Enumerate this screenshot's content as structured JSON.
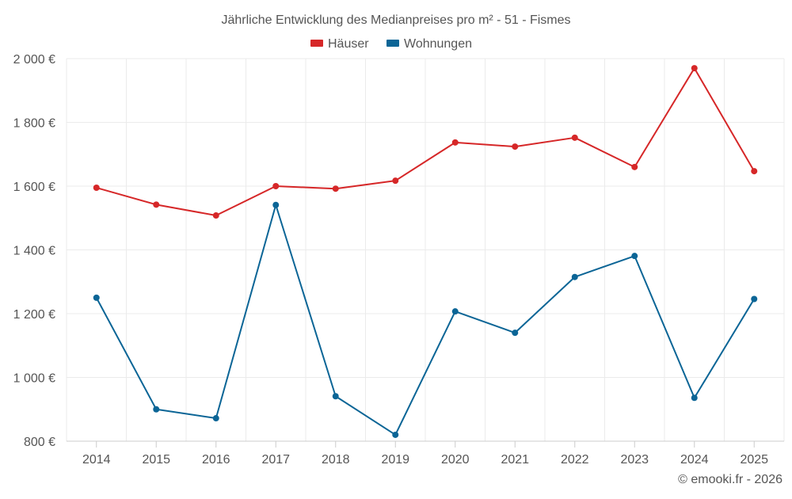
{
  "chart_data": {
    "type": "line",
    "title": "Jährliche Entwicklung des Medianpreises pro m² - 51 - Fismes",
    "xlabel": "",
    "ylabel": "",
    "categories": [
      "2014",
      "2015",
      "2016",
      "2017",
      "2018",
      "2019",
      "2020",
      "2021",
      "2022",
      "2023",
      "2024",
      "2025"
    ],
    "ylim": [
      800,
      2000
    ],
    "yticks": [
      800,
      1000,
      1200,
      1400,
      1600,
      1800,
      2000
    ],
    "ytick_labels": [
      "800 €",
      "1 000 €",
      "1 200 €",
      "1 400 €",
      "1 600 €",
      "1 800 €",
      "2 000 €"
    ],
    "grid": true,
    "legend_position": "top-center",
    "series": [
      {
        "name": "Häuser",
        "color": "#d62728",
        "values": [
          1595,
          1542,
          1508,
          1600,
          1592,
          1617,
          1737,
          1724,
          1752,
          1660,
          1970,
          1647
        ]
      },
      {
        "name": "Wohnungen",
        "color": "#0b6596",
        "values": [
          1250,
          900,
          872,
          1541,
          941,
          820,
          1207,
          1140,
          1315,
          1381,
          936,
          1246
        ]
      }
    ]
  },
  "footer": {
    "credit": "© emooki.fr - 2026"
  },
  "colors": {
    "grid": "#ebebeb",
    "axis": "#cccccc",
    "text": "#555555"
  }
}
